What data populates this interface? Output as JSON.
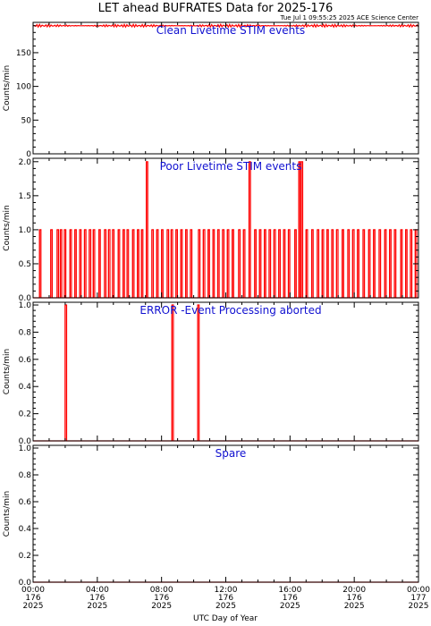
{
  "title": "LET ahead BUFRATES Data for 2025-176",
  "stamp": "Tue Jul  1 09:55:25 2025 ACE Science Center",
  "xlabel": "UTC Day of Year",
  "colors": {
    "series": "#ff0000",
    "panel_title": "#1010d0",
    "axes": "#000000"
  },
  "chart_data": [
    {
      "type": "line",
      "title": "Clean Livetime STIM events",
      "ylabel": "Counts/min",
      "ylim": [
        0,
        195
      ],
      "yticks": [
        0,
        50,
        100,
        150
      ],
      "xlim": [
        0,
        24
      ],
      "constant_level": 190,
      "noise": 2,
      "series": []
    },
    {
      "type": "line",
      "title": "Poor Livetime STIM events",
      "ylabel": "Counts/min",
      "ylim": [
        0,
        2.05
      ],
      "yticks": [
        0.0,
        0.5,
        1.0,
        1.5,
        2.0
      ],
      "xlim": [
        0,
        24
      ],
      "spikes": [
        {
          "x": 0.4,
          "y": 1
        },
        {
          "x": 1.1,
          "y": 1
        },
        {
          "x": 1.5,
          "y": 1
        },
        {
          "x": 1.7,
          "y": 1
        },
        {
          "x": 1.95,
          "y": 1
        },
        {
          "x": 2.3,
          "y": 1
        },
        {
          "x": 2.6,
          "y": 1
        },
        {
          "x": 2.9,
          "y": 1
        },
        {
          "x": 3.2,
          "y": 1
        },
        {
          "x": 3.5,
          "y": 1
        },
        {
          "x": 3.75,
          "y": 1
        },
        {
          "x": 4.1,
          "y": 1
        },
        {
          "x": 4.45,
          "y": 1
        },
        {
          "x": 4.7,
          "y": 1
        },
        {
          "x": 4.95,
          "y": 1
        },
        {
          "x": 5.3,
          "y": 1
        },
        {
          "x": 5.6,
          "y": 1
        },
        {
          "x": 5.85,
          "y": 1
        },
        {
          "x": 6.2,
          "y": 1
        },
        {
          "x": 6.5,
          "y": 1
        },
        {
          "x": 6.75,
          "y": 1
        },
        {
          "x": 7.05,
          "y": 2
        },
        {
          "x": 7.4,
          "y": 1
        },
        {
          "x": 7.7,
          "y": 1
        },
        {
          "x": 8.0,
          "y": 1
        },
        {
          "x": 8.35,
          "y": 1
        },
        {
          "x": 8.6,
          "y": 1
        },
        {
          "x": 8.9,
          "y": 1
        },
        {
          "x": 9.2,
          "y": 1
        },
        {
          "x": 9.5,
          "y": 1
        },
        {
          "x": 9.8,
          "y": 1
        },
        {
          "x": 10.3,
          "y": 1
        },
        {
          "x": 10.6,
          "y": 1
        },
        {
          "x": 10.9,
          "y": 1
        },
        {
          "x": 11.2,
          "y": 1
        },
        {
          "x": 11.5,
          "y": 1
        },
        {
          "x": 11.8,
          "y": 1
        },
        {
          "x": 12.1,
          "y": 1
        },
        {
          "x": 12.4,
          "y": 1
        },
        {
          "x": 12.8,
          "y": 1
        },
        {
          "x": 13.1,
          "y": 1
        },
        {
          "x": 13.45,
          "y": 2
        },
        {
          "x": 13.8,
          "y": 1
        },
        {
          "x": 14.1,
          "y": 1
        },
        {
          "x": 14.4,
          "y": 1
        },
        {
          "x": 14.7,
          "y": 1
        },
        {
          "x": 15.0,
          "y": 1
        },
        {
          "x": 15.3,
          "y": 1
        },
        {
          "x": 15.6,
          "y": 1
        },
        {
          "x": 15.9,
          "y": 1
        },
        {
          "x": 16.3,
          "y": 1
        },
        {
          "x": 16.55,
          "y": 2
        },
        {
          "x": 16.7,
          "y": 2
        },
        {
          "x": 17.0,
          "y": 1
        },
        {
          "x": 17.35,
          "y": 1
        },
        {
          "x": 17.7,
          "y": 1
        },
        {
          "x": 18.0,
          "y": 1
        },
        {
          "x": 18.3,
          "y": 1
        },
        {
          "x": 18.6,
          "y": 1
        },
        {
          "x": 18.9,
          "y": 1
        },
        {
          "x": 19.25,
          "y": 1
        },
        {
          "x": 19.6,
          "y": 1
        },
        {
          "x": 19.9,
          "y": 1
        },
        {
          "x": 20.2,
          "y": 1
        },
        {
          "x": 20.55,
          "y": 1
        },
        {
          "x": 20.9,
          "y": 1
        },
        {
          "x": 21.2,
          "y": 1
        },
        {
          "x": 21.55,
          "y": 1
        },
        {
          "x": 21.9,
          "y": 1
        },
        {
          "x": 22.2,
          "y": 1
        },
        {
          "x": 22.5,
          "y": 1
        },
        {
          "x": 22.9,
          "y": 1
        },
        {
          "x": 23.2,
          "y": 1
        },
        {
          "x": 23.5,
          "y": 1
        },
        {
          "x": 23.8,
          "y": 1
        }
      ]
    },
    {
      "type": "line",
      "title": "ERROR -Event Processing aborted",
      "ylabel": "Counts/min",
      "ylim": [
        0,
        1.02
      ],
      "yticks": [
        0.0,
        0.2,
        0.4,
        0.6,
        0.8,
        1.0
      ],
      "xlim": [
        0,
        24
      ],
      "spikes": [
        {
          "x": 2.0,
          "y": 1
        },
        {
          "x": 8.65,
          "y": 1
        },
        {
          "x": 10.25,
          "y": 1
        }
      ]
    },
    {
      "type": "line",
      "title": "Spare",
      "ylabel": "Counts/min",
      "ylim": [
        0,
        1.02
      ],
      "yticks": [
        0.0,
        0.2,
        0.4,
        0.6,
        0.8,
        1.0
      ],
      "xlim": [
        0,
        24
      ],
      "spikes": []
    }
  ],
  "xticks": [
    {
      "time": "00:00",
      "doy": "176",
      "year": "2025"
    },
    {
      "time": "04:00",
      "doy": "176",
      "year": "2025"
    },
    {
      "time": "08:00",
      "doy": "176",
      "year": "2025"
    },
    {
      "time": "12:00",
      "doy": "176",
      "year": "2025"
    },
    {
      "time": "16:00",
      "doy": "176",
      "year": "2025"
    },
    {
      "time": "20:00",
      "doy": "176",
      "year": "2025"
    },
    {
      "time": "00:00",
      "doy": "177",
      "year": "2025"
    }
  ]
}
